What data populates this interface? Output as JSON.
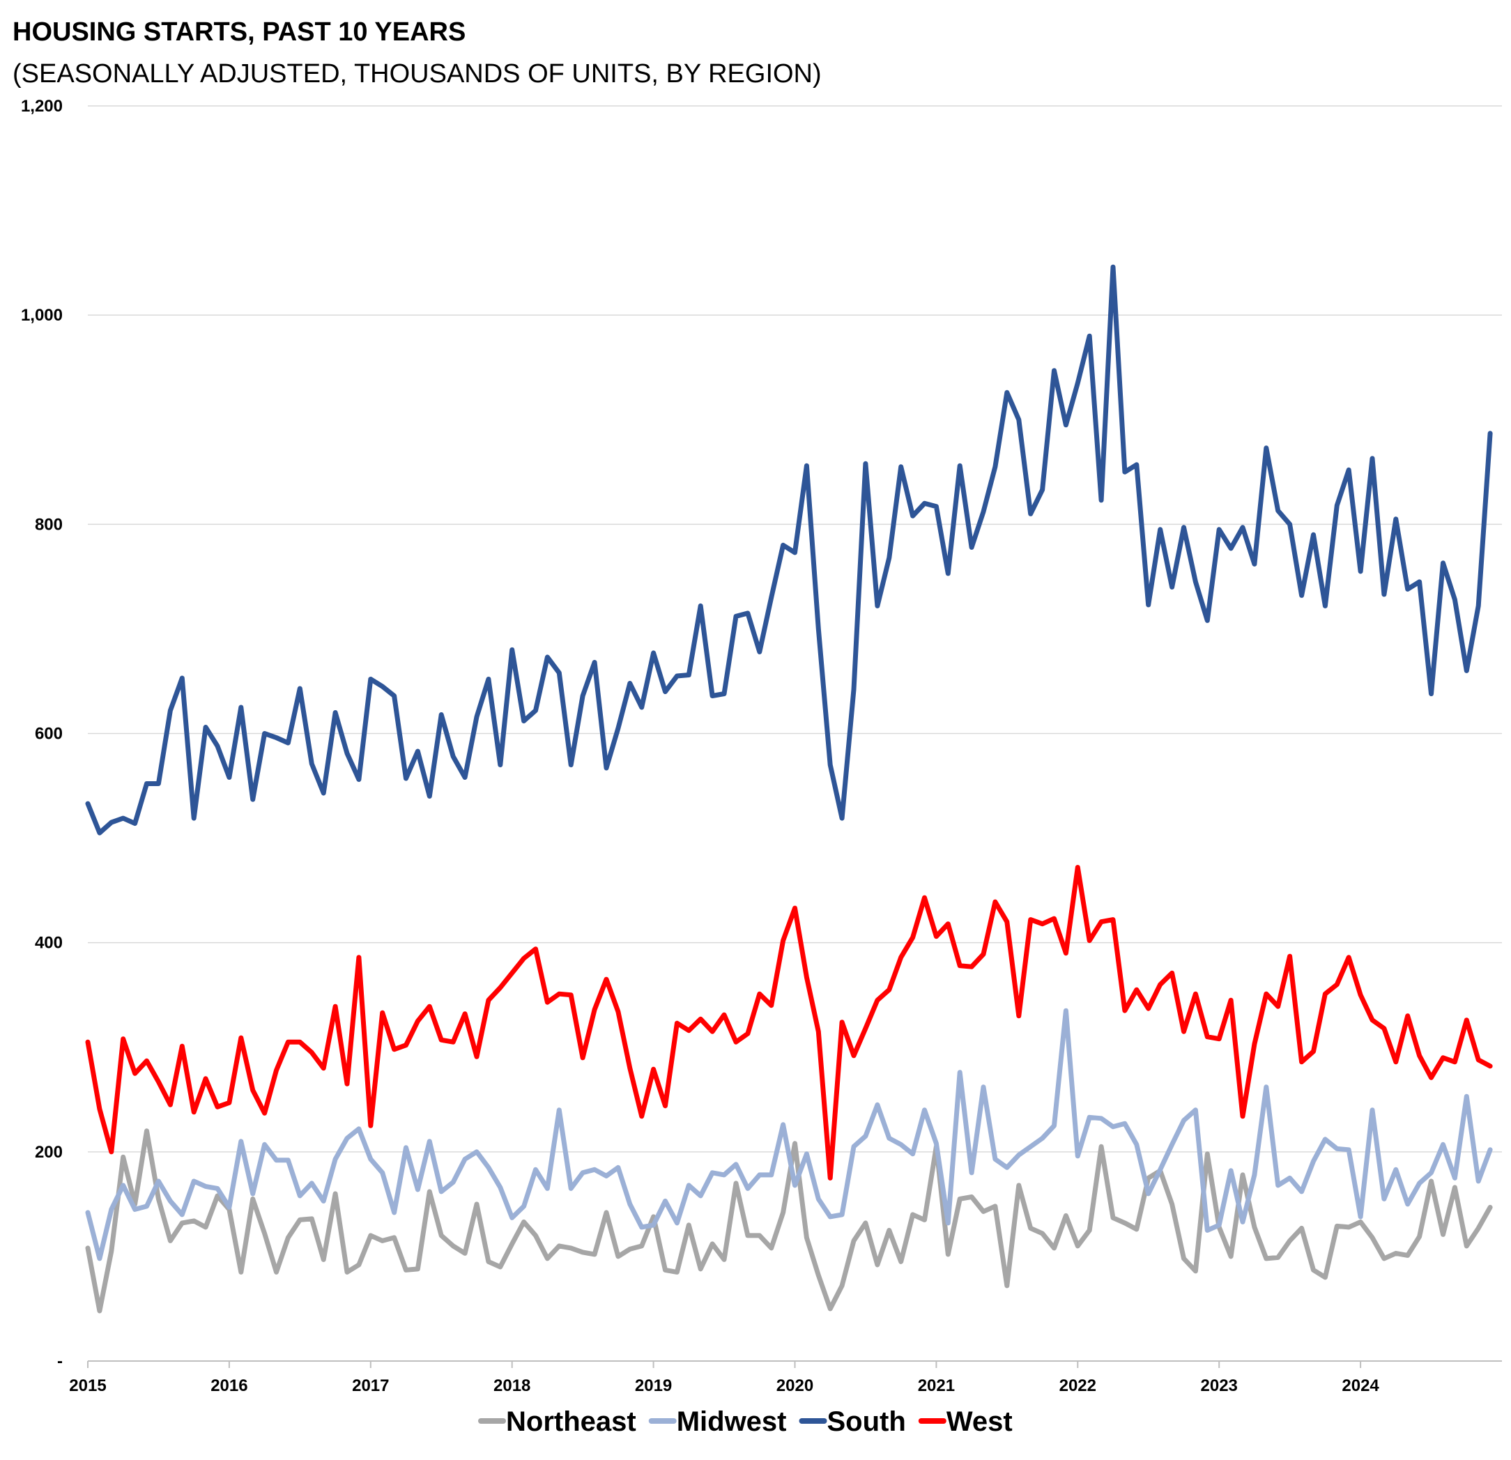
{
  "chart_data": {
    "type": "line",
    "title": "HOUSING STARTS, PAST 10 YEARS",
    "subtitle": "(SEASONALLY ADJUSTED, THOUSANDS OF UNITS, BY REGION)",
    "xlabel": "",
    "ylabel": "",
    "x_start": 2015.0,
    "x_step": 0.083333,
    "xlim": [
      2015,
      2025
    ],
    "x_ticks": [
      2015,
      2016,
      2017,
      2018,
      2019,
      2020,
      2021,
      2022,
      2023,
      2024
    ],
    "x_tick_labels": [
      "2015",
      "2016",
      "2017",
      "2018",
      "2019",
      "2020",
      "2021",
      "2022",
      "2023",
      "2024"
    ],
    "ylim": [
      0,
      1200
    ],
    "y_ticks": [
      0,
      200,
      400,
      600,
      800,
      1000,
      1200
    ],
    "y_tick_labels": [
      "-",
      "200",
      "400",
      "600",
      "800",
      "1,000",
      "1,200"
    ],
    "grid": true,
    "legend_position": "bottom",
    "series": [
      {
        "name": "Northeast",
        "color": "#a6a6a6",
        "values": [
          108,
          48,
          105,
          195,
          150,
          220,
          155,
          115,
          132,
          134,
          128,
          158,
          145,
          85,
          155,
          122,
          85,
          118,
          135,
          136,
          97,
          160,
          85,
          92,
          120,
          115,
          118,
          87,
          88,
          162,
          120,
          110,
          103,
          150,
          95,
          90,
          112,
          133,
          120,
          98,
          110,
          108,
          104,
          102,
          142,
          100,
          107,
          110,
          138,
          87,
          85,
          130,
          88,
          112,
          97,
          170,
          120,
          120,
          108,
          142,
          208,
          118,
          82,
          50,
          72,
          115,
          132,
          92,
          125,
          95,
          140,
          135,
          205,
          102,
          155,
          157,
          143,
          148,
          72,
          168,
          127,
          122,
          108,
          139,
          110,
          125,
          205,
          137,
          132,
          126,
          175,
          182,
          150,
          98,
          86,
          198,
          128,
          100,
          178,
          128,
          98,
          99,
          115,
          127,
          87,
          80,
          129,
          128,
          133,
          118,
          98,
          103,
          101,
          119,
          172,
          121,
          166,
          110,
          127,
          147
        ]
      },
      {
        "name": "Midwest",
        "color": "#9bb0d6",
        "values": [
          142,
          98,
          145,
          168,
          145,
          148,
          172,
          153,
          140,
          172,
          167,
          165,
          147,
          210,
          160,
          207,
          192,
          192,
          158,
          170,
          153,
          193,
          213,
          222,
          193,
          180,
          142,
          204,
          164,
          210,
          162,
          171,
          193,
          200,
          185,
          166,
          137,
          148,
          183,
          165,
          240,
          165,
          180,
          183,
          177,
          185,
          150,
          128,
          130,
          153,
          132,
          168,
          158,
          180,
          178,
          188,
          165,
          178,
          178,
          226,
          168,
          198,
          155,
          138,
          140,
          205,
          215,
          245,
          213,
          207,
          198,
          240,
          208,
          132,
          276,
          180,
          262,
          193,
          185,
          197,
          205,
          213,
          225,
          335,
          196,
          233,
          232,
          224,
          227,
          207,
          160,
          183,
          207,
          230,
          240,
          125,
          130,
          182,
          133,
          178,
          262,
          168,
          175,
          162,
          191,
          212,
          203,
          202,
          138,
          240,
          155,
          183,
          150,
          170,
          180,
          207,
          175,
          253,
          172,
          202
        ]
      },
      {
        "name": "South",
        "color": "#2e5597",
        "values": [
          533,
          505,
          515,
          519,
          514,
          552,
          552,
          622,
          653,
          519,
          606,
          588,
          558,
          625,
          537,
          600,
          596,
          591,
          643,
          571,
          543,
          620,
          581,
          556,
          652,
          645,
          636,
          557,
          583,
          540,
          618,
          578,
          558,
          616,
          652,
          570,
          680,
          612,
          622,
          673,
          658,
          570,
          636,
          668,
          567,
          605,
          648,
          625,
          677,
          640,
          655,
          656,
          722,
          636,
          638,
          712,
          715,
          678,
          730,
          780,
          773,
          856,
          700,
          570,
          519,
          642,
          858,
          722,
          768,
          855,
          808,
          820,
          817,
          753,
          856,
          778,
          812,
          855,
          926,
          900,
          810,
          833,
          947,
          895,
          935,
          980,
          823,
          1046,
          850,
          857,
          723,
          795,
          740,
          797,
          745,
          708,
          795,
          777,
          797,
          762,
          873,
          813,
          800,
          732,
          790,
          722,
          818,
          852,
          755,
          863,
          733,
          805,
          738,
          745,
          638,
          763,
          728,
          660,
          722,
          887
        ]
      },
      {
        "name": "West",
        "color": "#ff0000",
        "values": [
          305,
          241,
          200,
          308,
          275,
          287,
          267,
          245,
          301,
          238,
          270,
          243,
          247,
          309,
          259,
          237,
          278,
          305,
          305,
          295,
          280,
          339,
          265,
          386,
          225,
          333,
          298,
          302,
          325,
          339,
          307,
          305,
          332,
          291,
          345,
          357,
          371,
          385,
          394,
          343,
          351,
          350,
          290,
          336,
          365,
          334,
          280,
          234,
          279,
          244,
          323,
          316,
          327,
          315,
          331,
          305,
          313,
          351,
          340,
          402,
          433,
          367,
          315,
          175,
          324,
          292,
          318,
          345,
          355,
          386,
          405,
          443,
          406,
          418,
          378,
          377,
          389,
          439,
          420,
          330,
          422,
          418,
          423,
          390,
          472,
          402,
          420,
          422,
          335,
          355,
          337,
          360,
          371,
          315,
          351,
          310,
          308,
          345,
          234,
          303,
          351,
          339,
          387,
          286,
          296,
          351,
          360,
          386,
          350,
          326,
          318,
          286,
          330,
          292,
          271,
          290,
          286,
          326,
          288,
          282
        ]
      }
    ]
  }
}
